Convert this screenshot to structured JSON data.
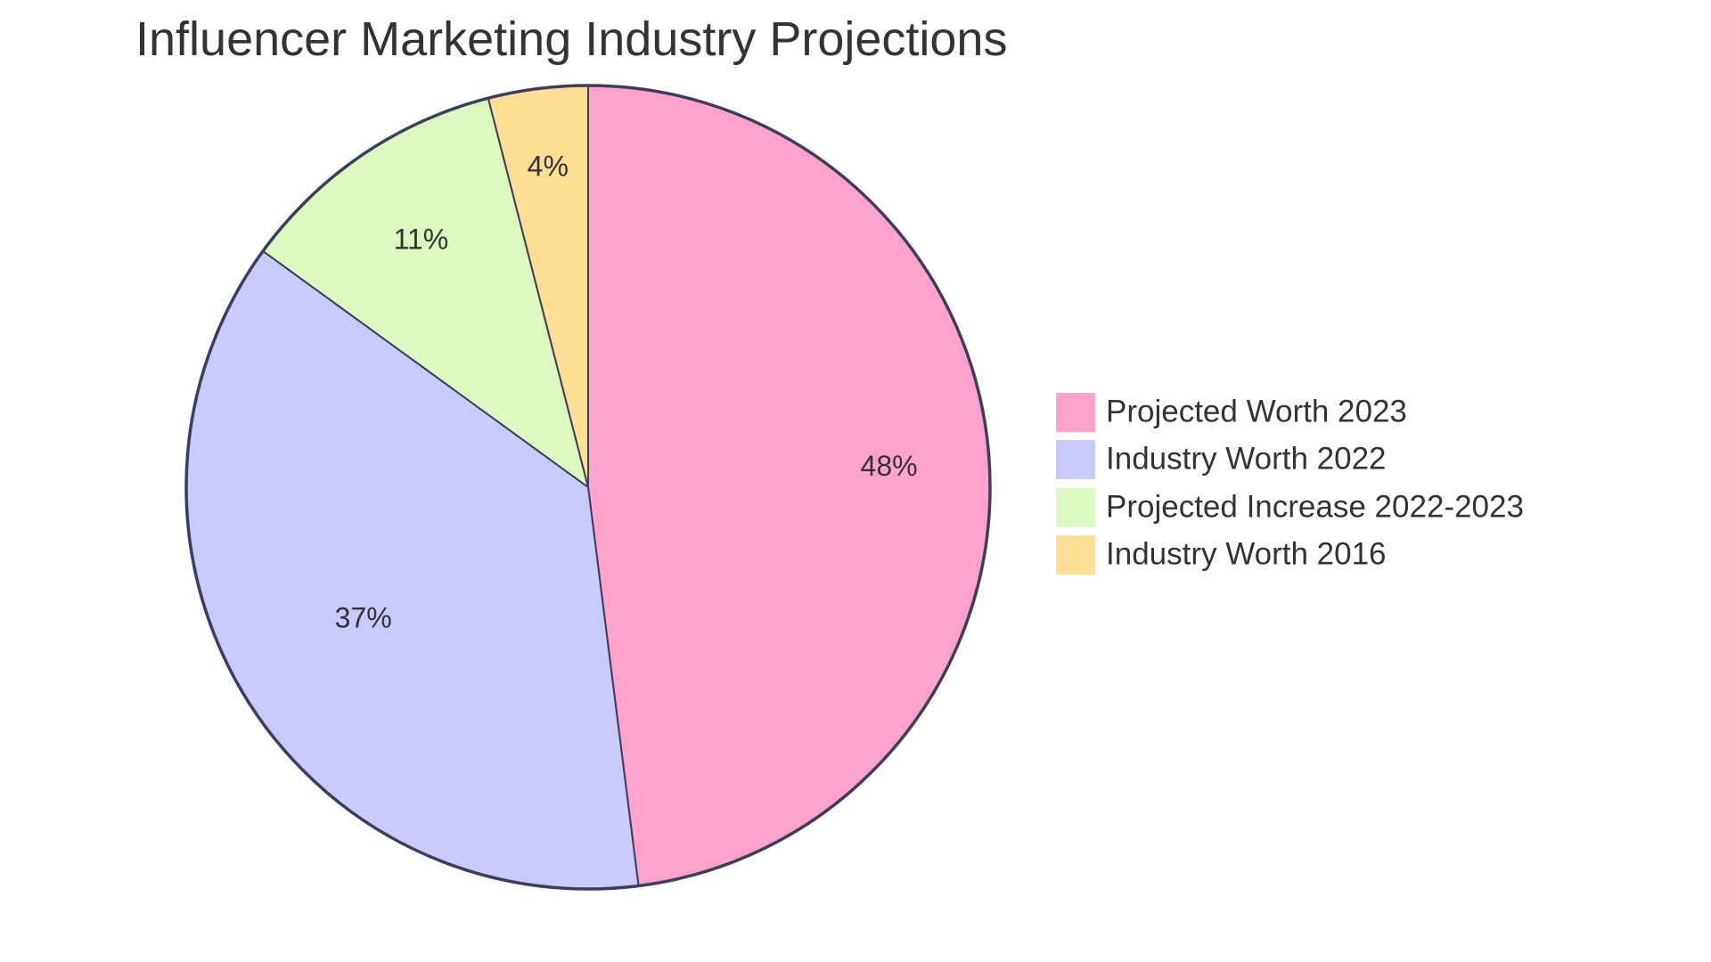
{
  "title": "Influencer Marketing Industry Projections",
  "chart_data": {
    "type": "pie",
    "title": "Influencer Marketing Industry Projections",
    "categories": [
      "Projected Worth 2023",
      "Industry Worth 2022",
      "Projected Increase 2022-2023",
      "Industry Worth 2016"
    ],
    "values": [
      48,
      37,
      11,
      4
    ],
    "labels": [
      "48%",
      "37%",
      "11%",
      "4%"
    ],
    "colors": [
      "#FFA3CD",
      "#C9CAFF",
      "#DBF9BF",
      "#FEDE94"
    ],
    "stroke_color": "#3D3D5C",
    "legend_position": "right",
    "start_angle_deg": 0,
    "direction": "clockwise"
  },
  "legend": {
    "items": [
      {
        "label": "Projected Worth 2023",
        "color": "#FFA3CD"
      },
      {
        "label": "Industry Worth 2022",
        "color": "#C9CAFF"
      },
      {
        "label": "Projected Increase 2022-2023",
        "color": "#DBF9BF"
      },
      {
        "label": "Industry Worth 2016",
        "color": "#FEDE94"
      }
    ]
  }
}
